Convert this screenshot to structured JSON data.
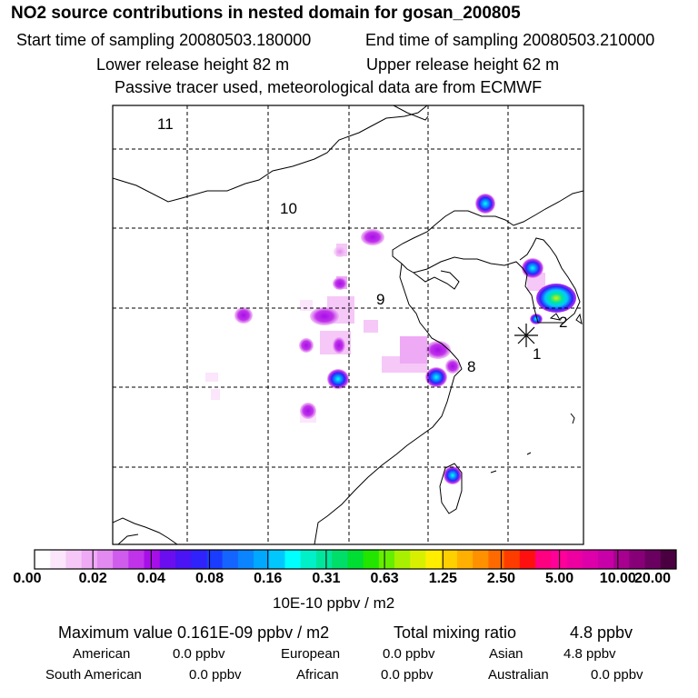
{
  "header": {
    "title": "NO2 source contributions in nested domain for gosan_200805",
    "start_time": "Start time of sampling 20080503.180000",
    "end_time": "End time of sampling 20080503.210000",
    "lower_height": "Lower release height   82 m",
    "upper_height": "Upper release height   62 m",
    "tracer_note": "Passive tracer used, meteorological data are from ECMWF"
  },
  "map": {
    "region_labels": [
      "11",
      "10",
      "9",
      "8",
      "2",
      "1"
    ],
    "receptor_marker": "star-receptor"
  },
  "colorbar": {
    "tick_labels": [
      "0.00",
      "0.02",
      "0.04",
      "0.08",
      "0.16",
      "0.31",
      "0.63",
      "1.25",
      "2.50",
      "5.00",
      "10.00",
      "20.00"
    ],
    "colors": [
      "#ffffff",
      "#fbe6fb",
      "#f5c8f7",
      "#eeaaf4",
      "#e28af0",
      "#cf5cec",
      "#c033ea",
      "#a70fe8",
      "#6a0ef0",
      "#4b14f5",
      "#3022fb",
      "#1a3cff",
      "#1464ff",
      "#0a84ff",
      "#00a8ff",
      "#00c8ff",
      "#00ffff",
      "#00f0c8",
      "#00e69c",
      "#00de6a",
      "#00dd33",
      "#22e600",
      "#66ee00",
      "#a8f000",
      "#d8f000",
      "#ffee00",
      "#ffd000",
      "#ffb000",
      "#ff9000",
      "#ff6a00",
      "#ff3c00",
      "#ff1010",
      "#ff0080",
      "#ff0099",
      "#ee00a0",
      "#dd00aa",
      "#c800a8",
      "#a8008f",
      "#880078",
      "#6a0060",
      "#4a0040"
    ],
    "units": "10E-10 ppbv / m2"
  },
  "stats": {
    "maximum": "Maximum value  0.161E-09 ppbv / m2",
    "total_label": "Total mixing ratio",
    "total_value": "4.8 ppbv",
    "american_label": "American",
    "american_value": "0.0 ppbv",
    "european_label": "European",
    "european_value": "0.0 ppbv",
    "asian_label": "Asian",
    "asian_value": "4.8 ppbv",
    "south_american_label": "South American",
    "south_american_value": "0.0 ppbv",
    "african_label": "African",
    "african_value": "0.0 ppbv",
    "australian_label": "Australian",
    "australian_value": "0.0 ppbv"
  }
}
